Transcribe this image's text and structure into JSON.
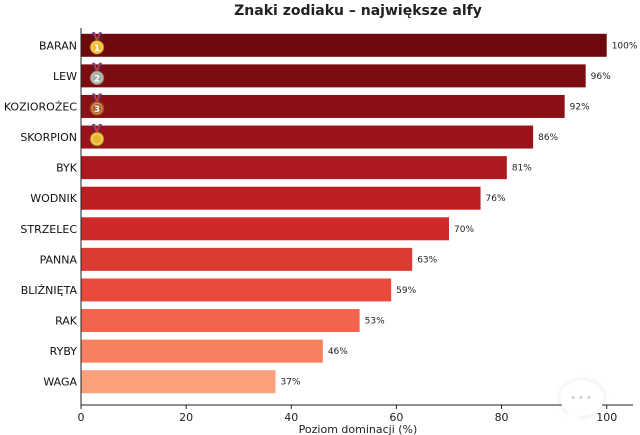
{
  "chart_data": {
    "type": "bar",
    "orientation": "horizontal",
    "title": "Znaki zodiaku – największe alfy",
    "xlabel": "Poziom dominacji (%)",
    "ylabel": "",
    "xlim": [
      0,
      105
    ],
    "x_ticks": [
      0,
      20,
      40,
      60,
      80,
      100
    ],
    "grid": false,
    "categories": [
      "BARAN",
      "LEW",
      "KOZIOROŻEC",
      "SKORPION",
      "BYK",
      "WODNIK",
      "STRZELEC",
      "PANNA",
      "BLIŹNIĘTA",
      "RAK",
      "RYBY",
      "WAGA"
    ],
    "values": [
      100,
      96,
      92,
      86,
      81,
      76,
      70,
      63,
      59,
      53,
      46,
      37
    ],
    "value_labels": [
      "100%",
      "96%",
      "92%",
      "86%",
      "81%",
      "76%",
      "70%",
      "63%",
      "59%",
      "53%",
      "46%",
      "37%"
    ],
    "bar_colors": [
      "#6e0a0e",
      "#7a0c12",
      "#8a1016",
      "#9a131a",
      "#ae181e",
      "#bd1e22",
      "#cf2a2a",
      "#dc3b33",
      "#e84a3b",
      "#f2644c",
      "#f7805f",
      "#fba07c"
    ],
    "medals": [
      {
        "category": "BARAN",
        "label": "1",
        "color": "#f3b82a",
        "icon": "gold-medal-icon"
      },
      {
        "category": "LEW",
        "label": "2",
        "color": "#a4a4a4",
        "icon": "silver-medal-icon"
      },
      {
        "category": "KOZIOROŻEC",
        "label": "3",
        "color": "#b5581f",
        "icon": "bronze-medal-icon"
      },
      {
        "category": "SKORPION",
        "label": "",
        "color": "#e9b62c",
        "icon": "award-medal-icon"
      }
    ]
  },
  "overlay": {
    "icon": "chat-bubble-icon",
    "dots": "•••"
  }
}
